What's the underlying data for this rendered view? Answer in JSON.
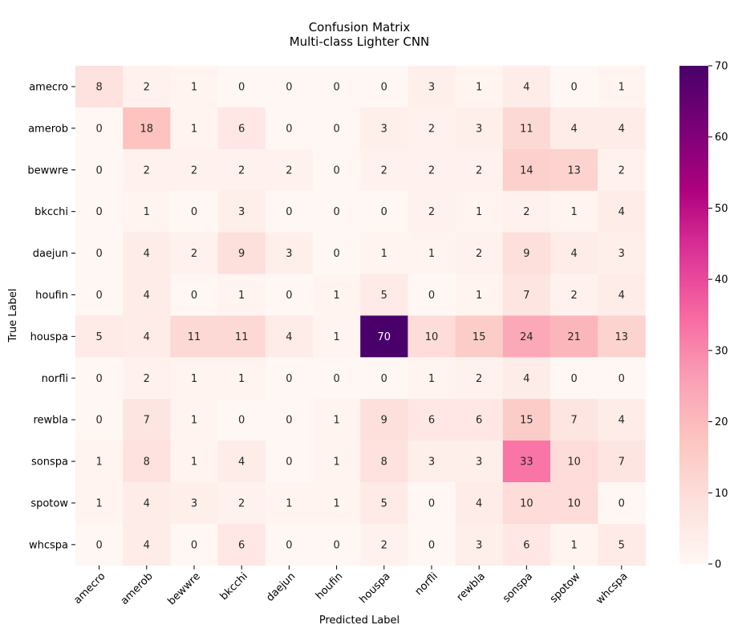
{
  "chart_data": {
    "type": "heatmap",
    "title": "Confusion Matrix",
    "subtitle": "Multi-class Lighter CNN",
    "xlabel": "Predicted Label",
    "ylabel": "True Label",
    "categories_x": [
      "amecro",
      "amerob",
      "bewwre",
      "bkcchi",
      "daejun",
      "houfin",
      "houspa",
      "norfli",
      "rewbla",
      "sonspa",
      "spotow",
      "whcspa"
    ],
    "categories_y": [
      "amecro",
      "amerob",
      "bewwre",
      "bkcchi",
      "daejun",
      "houfin",
      "houspa",
      "norfli",
      "rewbla",
      "sonspa",
      "spotow",
      "whcspa"
    ],
    "values": [
      [
        8,
        2,
        1,
        0,
        0,
        0,
        0,
        3,
        1,
        4,
        0,
        1
      ],
      [
        0,
        18,
        1,
        6,
        0,
        0,
        3,
        2,
        3,
        11,
        4,
        4
      ],
      [
        0,
        2,
        2,
        2,
        2,
        0,
        2,
        2,
        2,
        14,
        13,
        2
      ],
      [
        0,
        1,
        0,
        3,
        0,
        0,
        0,
        2,
        1,
        2,
        1,
        4
      ],
      [
        0,
        4,
        2,
        9,
        3,
        0,
        1,
        1,
        2,
        9,
        4,
        3
      ],
      [
        0,
        4,
        0,
        1,
        0,
        1,
        5,
        0,
        1,
        7,
        2,
        4
      ],
      [
        5,
        4,
        11,
        11,
        4,
        1,
        70,
        10,
        15,
        24,
        21,
        13
      ],
      [
        0,
        2,
        1,
        1,
        0,
        0,
        0,
        1,
        2,
        4,
        0,
        0
      ],
      [
        0,
        7,
        1,
        0,
        0,
        1,
        9,
        6,
        6,
        15,
        7,
        4
      ],
      [
        1,
        8,
        1,
        4,
        0,
        1,
        8,
        3,
        3,
        33,
        10,
        7
      ],
      [
        1,
        4,
        3,
        2,
        1,
        1,
        5,
        0,
        4,
        10,
        10,
        0
      ],
      [
        0,
        4,
        0,
        6,
        0,
        0,
        2,
        0,
        3,
        6,
        1,
        5
      ]
    ],
    "colorbar": {
      "min": 0,
      "max": 70,
      "ticks": [
        0,
        10,
        20,
        30,
        40,
        50,
        60,
        70
      ],
      "colormap": "RdPu"
    }
  }
}
